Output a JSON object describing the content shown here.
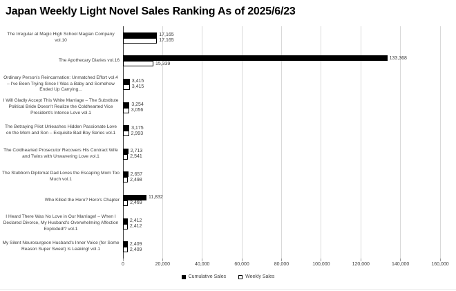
{
  "chart_data": {
    "type": "bar",
    "orientation": "horizontal",
    "title": "Japan Weekly Light Novel Sales Ranking As of 2025/6/23",
    "categories": [
      "The Irregular at Magic High School Magian Company vol.10",
      "The Apothecary Diaries vol.16",
      "Ordinary Person's Reincarnation: Unmatched Effort vol.4 – I've Been Trying Since I Was a Baby and Somehow Ended Up Carrying...",
      "I Will Gladly Accept This White Marriage – The Substitute Political Bride Doesn't Realize the Coldhearted Vice President's Intense Love vol.1",
      "The Betraying Pilot Unleashes Hidden Passionate Love on the Mom and Son – Exquisite Bad Boy Series vol.1",
      "The Coldhearted Prosecutor Recovers His Contract Wife and Twins with Unwavering Love vol.1",
      "The Stubborn Diplomat Dad Loves the Escaping Mom Too Much vol.1",
      "Who Killed the Hero? Hero's Chapter",
      "I Heard There Was No Love in Our Marriage! – When I Declared Divorce, My Husband's Overwhelming Affection Exploded!? vol.1",
      "My Silent Neurosurgeon Husband's Inner Voice (for Some Reason Super Sweet) Is Leaking! vol.1"
    ],
    "series": [
      {
        "name": "Cumulative Sales",
        "style": "solid-black",
        "color": "#000000",
        "values": [
          17165,
          133368,
          3415,
          3254,
          3175,
          2713,
          2657,
          11832,
          2412,
          2409
        ]
      },
      {
        "name": "Weekly Sales",
        "style": "white-outline",
        "color": "#ffffff",
        "border_color": "#000000",
        "values": [
          17165,
          15339,
          3415,
          3056,
          2993,
          2541,
          2498,
          2469,
          2412,
          2409
        ]
      }
    ],
    "xlim": [
      0,
      160000
    ],
    "xticks": [
      "0",
      "20,000",
      "40,000",
      "60,000",
      "80,000",
      "100,000",
      "120,000",
      "140,000",
      "160,000"
    ],
    "grid": true,
    "gridline_color": "#d9d9d9",
    "legend_position": "bottom"
  }
}
